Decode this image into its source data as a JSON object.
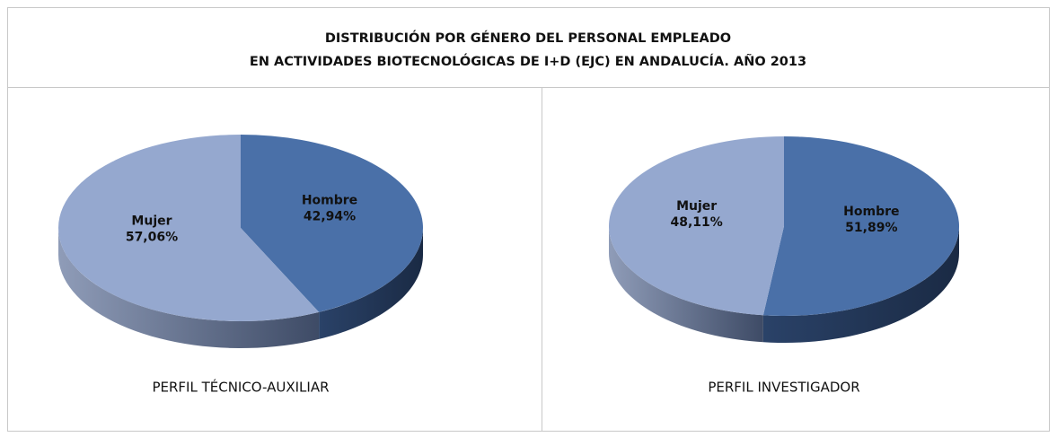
{
  "title": [
    "DISTRIBUCIÓN POR GÉNERO DEL PERSONAL EMPLEADO",
    "EN ACTIVIDADES BIOTECNOLÓGICAS DE I+D (EJC) EN ANDALUCÍA. AÑO 2013"
  ],
  "chart_data": [
    {
      "type": "pie",
      "title": "PERFIL TÉCNICO-AUXILIAR",
      "categories": [
        "Hombre",
        "Mujer"
      ],
      "values": [
        42.94,
        57.06
      ],
      "value_labels": [
        "42,94%",
        "57,06%"
      ],
      "colors": [
        "#4a70a8",
        "#95a8cf"
      ]
    },
    {
      "type": "pie",
      "title": "PERFIL INVESTIGADOR",
      "categories": [
        "Hombre",
        "Mujer"
      ],
      "values": [
        51.89,
        48.11
      ],
      "value_labels": [
        "51,89%",
        "48,11%"
      ],
      "colors": [
        "#4a70a8",
        "#95a8cf"
      ]
    }
  ]
}
